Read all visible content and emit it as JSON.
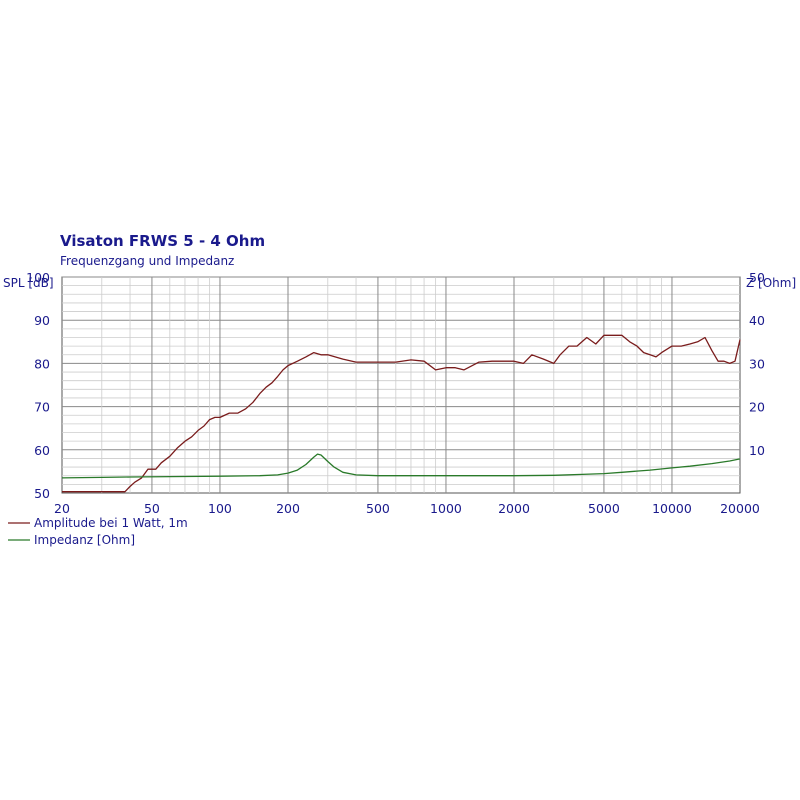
{
  "chart_data": {
    "type": "line",
    "title": "Visaton FRWS 5 - 4 Ohm",
    "subtitle": "Frequenzgang und Impedanz",
    "xscale": "log",
    "xlim": [
      20,
      20000
    ],
    "x_ticks": [
      "20",
      "50",
      "100",
      "200",
      "500",
      "1000",
      "2000",
      "5000",
      "10000",
      "20000"
    ],
    "ylabel_left": "SPL [dB]",
    "ylim_left": [
      50,
      100
    ],
    "y_ticks_left": [
      "50",
      "60",
      "70",
      "80",
      "90",
      "100"
    ],
    "ylabel_right": "Z [Ohm]",
    "ylim_right": [
      0,
      50
    ],
    "y_ticks_right": [
      "10",
      "20",
      "30",
      "40",
      "50"
    ],
    "grid": true,
    "legend_position": "bottom-left",
    "series": [
      {
        "name": "Amplitude bei 1 Watt, 1m",
        "axis": "left",
        "color": "#7a1c1c",
        "x": [
          20,
          30,
          38,
          40,
          42,
          45,
          48,
          52,
          55,
          60,
          65,
          70,
          75,
          80,
          85,
          90,
          95,
          100,
          110,
          120,
          130,
          140,
          150,
          160,
          170,
          180,
          190,
          200,
          220,
          240,
          260,
          280,
          300,
          350,
          400,
          450,
          500,
          600,
          700,
          800,
          900,
          1000,
          1100,
          1200,
          1400,
          1600,
          1800,
          2000,
          2200,
          2400,
          2700,
          3000,
          3200,
          3500,
          3800,
          4200,
          4600,
          5000,
          5500,
          6000,
          6500,
          7000,
          7500,
          8000,
          8500,
          9000,
          10000,
          11000,
          12000,
          13000,
          14000,
          15000,
          16000,
          17000,
          18000,
          19000,
          20000
        ],
        "values": [
          50.3,
          50.3,
          50.3,
          51.5,
          52.5,
          53.5,
          55.5,
          55.5,
          57,
          58.5,
          60.5,
          62,
          63,
          64.5,
          65.5,
          67,
          67.5,
          67.5,
          68.5,
          68.5,
          69.5,
          71,
          73,
          74.5,
          75.5,
          77,
          78.5,
          79.5,
          80.5,
          81.5,
          82.5,
          82,
          82,
          81,
          80.3,
          80.3,
          80.3,
          80.3,
          80.8,
          80.5,
          78.5,
          79,
          79,
          78.5,
          80.3,
          80.5,
          80.5,
          80.5,
          80,
          82,
          81,
          80,
          82,
          84,
          84,
          86,
          84.5,
          86.5,
          86.5,
          86.5,
          85,
          84,
          82.5,
          82,
          81.5,
          82.5,
          84,
          84,
          84.5,
          85,
          86,
          83,
          80.5,
          80.5,
          80,
          80.5,
          85.5
        ]
      },
      {
        "name": "Impedanz [Ohm]",
        "axis": "right",
        "color": "#2a7a2a",
        "x": [
          20,
          30,
          40,
          60,
          100,
          150,
          180,
          200,
          220,
          240,
          260,
          270,
          280,
          300,
          320,
          350,
          400,
          500,
          700,
          1000,
          2000,
          3000,
          4000,
          5000,
          6000,
          8000,
          10000,
          12000,
          15000,
          18000,
          20000
        ],
        "values": [
          3.5,
          3.6,
          3.7,
          3.8,
          3.9,
          4.0,
          4.2,
          4.6,
          5.3,
          6.6,
          8.3,
          9.0,
          8.8,
          7.3,
          6.0,
          4.8,
          4.2,
          4.0,
          4.0,
          4.0,
          4.0,
          4.1,
          4.3,
          4.5,
          4.8,
          5.3,
          5.8,
          6.2,
          6.8,
          7.4,
          7.9
        ]
      }
    ]
  }
}
